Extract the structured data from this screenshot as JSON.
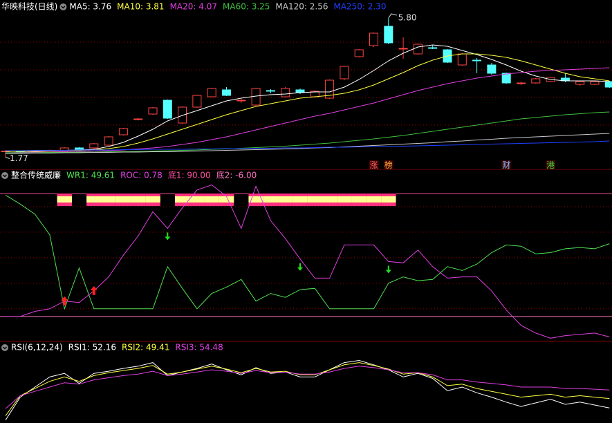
{
  "chart_data": [
    {
      "type": "candlestick",
      "title": "华映科技(日线)",
      "open": [
        1.93,
        1.95,
        1.94,
        1.96,
        1.96,
        2.04,
        2.04,
        2.12,
        2.42,
        2.86,
        3.02,
        3.42,
        2.76,
        3.22,
        3.52,
        3.72,
        3.4,
        3.28,
        3.7,
        3.52,
        3.72,
        3.52,
        3.48,
        4.04,
        4.68,
        5.0,
        5.56,
        4.9,
        4.76,
        4.94,
        4.88,
        4.44,
        4.58,
        4.44,
        4.2,
        3.9,
        3.92,
        3.96,
        4.06,
        3.88,
        3.88,
        3.96
      ],
      "high": [
        1.97,
        1.97,
        1.98,
        1.99,
        2.06,
        2.06,
        2.18,
        2.38,
        2.62,
        2.9,
        3.22,
        3.44,
        3.24,
        3.58,
        3.78,
        3.8,
        3.46,
        3.78,
        3.74,
        3.8,
        3.76,
        3.7,
        4.02,
        4.42,
        4.9,
        5.38,
        5.8,
        5.24,
        5.06,
        5.02,
        4.9,
        4.78,
        4.64,
        4.5,
        4.22,
        3.96,
        4.06,
        4.1,
        4.2,
        3.98,
        3.98,
        3.98
      ],
      "low": [
        1.77,
        1.92,
        1.92,
        1.94,
        1.95,
        1.96,
        2.02,
        2.1,
        2.4,
        2.84,
        3.0,
        2.88,
        2.74,
        3.2,
        3.5,
        3.54,
        3.34,
        3.26,
        3.62,
        3.5,
        3.6,
        3.5,
        3.46,
        4.0,
        4.66,
        4.96,
        5.04,
        4.62,
        4.74,
        4.9,
        4.5,
        4.42,
        4.2,
        4.16,
        3.9,
        3.86,
        3.9,
        3.94,
        3.94,
        3.84,
        3.86,
        3.78
      ],
      "close": [
        1.95,
        1.94,
        1.96,
        1.97,
        2.04,
        1.98,
        2.16,
        2.36,
        2.6,
        2.88,
        3.2,
        2.9,
        3.22,
        3.56,
        3.76,
        3.56,
        3.42,
        3.76,
        3.68,
        3.76,
        3.64,
        3.68,
        4.0,
        4.4,
        4.88,
        5.36,
        5.08,
        4.92,
        5.04,
        4.92,
        4.52,
        4.76,
        4.56,
        4.2,
        3.92,
        3.92,
        4.04,
        4.08,
        3.98,
        3.96,
        3.96,
        3.8
      ],
      "up_color": "#ff4444",
      "down_color": "#54ffff",
      "series": [
        {
          "name": "MA5: 3.76",
          "color": "#ffffff",
          "values": [
            1.94,
            1.95,
            1.95,
            1.95,
            1.97,
            1.98,
            2.0,
            2.08,
            2.2,
            2.38,
            2.58,
            2.82,
            2.98,
            3.12,
            3.26,
            3.4,
            3.48,
            3.54,
            3.58,
            3.6,
            3.64,
            3.66,
            3.66,
            3.8,
            4.02,
            4.28,
            4.56,
            4.78,
            4.96,
            5.02,
            4.98,
            4.86,
            4.74,
            4.6,
            4.44,
            4.26,
            4.12,
            4.02,
            3.98,
            3.98,
            3.98,
            3.96
          ]
        },
        {
          "name": "MA10: 3.81",
          "color": "#ffff40",
          "values": [
            1.94,
            1.94,
            1.94,
            1.95,
            1.96,
            1.97,
            1.98,
            2.02,
            2.08,
            2.18,
            2.3,
            2.44,
            2.58,
            2.72,
            2.86,
            3.0,
            3.12,
            3.24,
            3.32,
            3.4,
            3.48,
            3.52,
            3.56,
            3.62,
            3.72,
            3.86,
            4.04,
            4.22,
            4.42,
            4.58,
            4.7,
            4.76,
            4.76,
            4.72,
            4.66,
            4.56,
            4.44,
            4.32,
            4.2,
            4.1,
            4.04,
            3.98
          ]
        },
        {
          "name": "MA20: 4.07",
          "color": "#e040e0",
          "values": [
            1.9,
            1.91,
            1.92,
            1.92,
            1.93,
            1.94,
            1.95,
            1.96,
            1.98,
            2.01,
            2.04,
            2.08,
            2.14,
            2.2,
            2.28,
            2.36,
            2.46,
            2.56,
            2.66,
            2.76,
            2.86,
            2.96,
            3.04,
            3.14,
            3.24,
            3.34,
            3.46,
            3.58,
            3.7,
            3.8,
            3.9,
            3.98,
            4.06,
            4.12,
            4.18,
            4.22,
            4.26,
            4.28,
            4.3,
            4.32,
            4.34,
            4.36
          ]
        },
        {
          "name": "MA60: 3.25",
          "color": "#40c040",
          "values": [
            1.9,
            1.9,
            1.9,
            1.91,
            1.91,
            1.92,
            1.92,
            1.93,
            1.93,
            1.94,
            1.95,
            1.96,
            1.97,
            1.98,
            2.0,
            2.01,
            2.03,
            2.05,
            2.07,
            2.09,
            2.12,
            2.15,
            2.18,
            2.22,
            2.26,
            2.3,
            2.35,
            2.4,
            2.46,
            2.52,
            2.58,
            2.64,
            2.7,
            2.76,
            2.82,
            2.88,
            2.92,
            2.96,
            3.0,
            3.03,
            3.06,
            3.08
          ]
        },
        {
          "name": "MA120: 2.56",
          "color": "#c8c8c8",
          "values": [
            1.88,
            1.88,
            1.89,
            1.89,
            1.9,
            1.9,
            1.91,
            1.91,
            1.92,
            1.92,
            1.93,
            1.93,
            1.94,
            1.95,
            1.96,
            1.97,
            1.98,
            1.99,
            2.0,
            2.01,
            2.02,
            2.04,
            2.05,
            2.07,
            2.09,
            2.11,
            2.13,
            2.15,
            2.17,
            2.19,
            2.22,
            2.24,
            2.27,
            2.29,
            2.32,
            2.34,
            2.36,
            2.38,
            2.4,
            2.42,
            2.44,
            2.46
          ]
        },
        {
          "name": "MA250: 2.30",
          "color": "#2040ff",
          "values": [
            1.96,
            1.96,
            1.97,
            1.97,
            1.97,
            1.98,
            1.98,
            1.98,
            1.99,
            1.99,
            2.0,
            2.0,
            2.0,
            2.01,
            2.01,
            2.02,
            2.02,
            2.03,
            2.03,
            2.04,
            2.04,
            2.05,
            2.06,
            2.06,
            2.07,
            2.08,
            2.09,
            2.09,
            2.1,
            2.11,
            2.12,
            2.13,
            2.14,
            2.15,
            2.16,
            2.17,
            2.18,
            2.19,
            2.2,
            2.21,
            2.22,
            2.24
          ]
        }
      ],
      "max_label": {
        "value": 5.8,
        "label": "5.80"
      },
      "min_label": {
        "value": 1.77,
        "label": "1.77"
      },
      "tags": [
        null,
        null,
        null,
        null,
        null,
        null,
        null,
        null,
        null,
        null,
        null,
        null,
        null,
        null,
        null,
        null,
        null,
        null,
        null,
        null,
        null,
        null,
        null,
        null,
        null,
        {
          "text": "涨",
          "color": "#ff6060"
        },
        {
          "text": "榜",
          "color": "#ffb040"
        },
        null,
        null,
        null,
        null,
        null,
        null,
        null,
        {
          "text": "财",
          "color": "#80c0ff"
        },
        null,
        null,
        {
          "text": "港",
          "color": "#40e040"
        },
        null,
        null,
        null,
        null
      ],
      "ylim": [
        1.4,
        6.0
      ],
      "yticks": [
        2.7,
        3.5,
        4.3,
        5.1
      ],
      "grid": true
    },
    {
      "type": "line",
      "title": "整合传统威廉",
      "series": [
        {
          "name": "WR1: 49.61",
          "color": "#50e050",
          "values": [
            89,
            82,
            74,
            58,
            0,
            32,
            0,
            0,
            0,
            0,
            0,
            33,
            16,
            0,
            12,
            17,
            23,
            6,
            12,
            9,
            15,
            16,
            0,
            0,
            0,
            0,
            20,
            25,
            22,
            23,
            33,
            30,
            35,
            44,
            50,
            49,
            43,
            44,
            47,
            48,
            47,
            51
          ]
        },
        {
          "name": "ROC: 0.78",
          "color": "#e040e0",
          "values": [
            -6,
            -6,
            -2,
            0,
            6,
            5,
            14,
            25,
            42,
            57,
            76,
            63,
            79,
            93,
            97,
            88,
            63,
            96,
            69,
            55,
            39,
            24,
            24,
            50,
            50,
            50,
            37,
            36,
            46,
            33,
            24,
            25,
            25,
            14,
            -1,
            -13,
            -19,
            -23,
            -21,
            -20,
            -19,
            -22
          ]
        }
      ],
      "levels": [
        {
          "name": "底1: 90.00",
          "value": 90,
          "color": "#ff50a0"
        },
        {
          "name": "底2: -6.00",
          "value": -6,
          "color": "#ff70c0"
        }
      ],
      "signal": [
        0,
        0,
        0,
        0,
        1,
        0,
        1,
        1,
        1,
        1,
        1,
        0,
        1,
        1,
        1,
        1,
        0,
        1,
        1,
        1,
        1,
        1,
        1,
        1,
        1,
        1,
        1,
        0,
        0,
        0,
        0,
        0,
        0,
        0,
        0,
        0,
        0,
        0,
        0,
        0,
        0,
        0
      ],
      "up_arrows": [
        4,
        6
      ],
      "down_arrows": [
        11,
        20,
        26
      ],
      "ylim": [
        -25,
        100
      ],
      "yticks": [
        0,
        20,
        40,
        60,
        80
      ],
      "grid": true
    },
    {
      "type": "line",
      "title": "RSI(6,12,24)",
      "series": [
        {
          "name": "RSI1: 52.16",
          "color": "#ffffff",
          "values": [
            4,
            36,
            50,
            64,
            69,
            55,
            69,
            72,
            76,
            79,
            84,
            66,
            71,
            76,
            82,
            74,
            67,
            77,
            69,
            71,
            64,
            64,
            74,
            84,
            87,
            81,
            74,
            64,
            69,
            62,
            45,
            50,
            42,
            36,
            29,
            23,
            28,
            33,
            26,
            29,
            25,
            21
          ]
        },
        {
          "name": "RSI2: 49.41",
          "color": "#ffff40",
          "values": [
            10,
            38,
            48,
            58,
            64,
            58,
            66,
            70,
            73,
            76,
            80,
            68,
            71,
            75,
            79,
            75,
            70,
            76,
            71,
            72,
            67,
            67,
            74,
            81,
            84,
            80,
            75,
            68,
            70,
            64,
            52,
            54,
            48,
            44,
            40,
            36,
            38,
            40,
            36,
            38,
            36,
            34
          ]
        },
        {
          "name": "RSI3: 54.48",
          "color": "#e040e0",
          "values": [
            20,
            38,
            44,
            50,
            56,
            54,
            60,
            63,
            66,
            68,
            72,
            66,
            68,
            71,
            74,
            72,
            69,
            73,
            70,
            71,
            68,
            68,
            71,
            76,
            79,
            77,
            74,
            70,
            70,
            67,
            60,
            60,
            57,
            55,
            53,
            50,
            50,
            50,
            48,
            48,
            47,
            46
          ]
        }
      ],
      "ylim": [
        0,
        100
      ]
    }
  ]
}
